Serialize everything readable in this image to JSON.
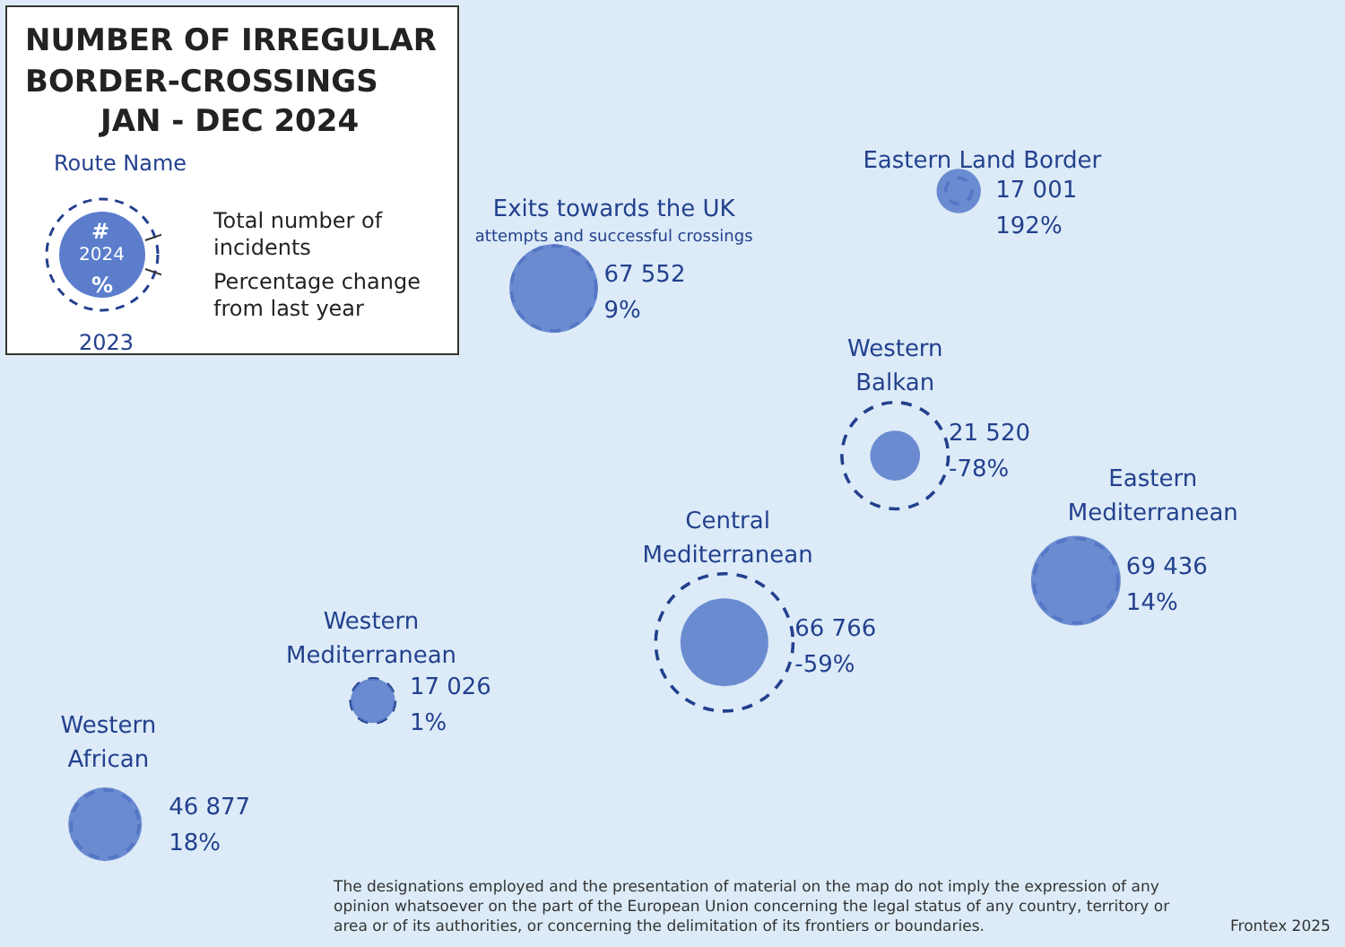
{
  "chart_data": {
    "type": "other",
    "title": "NUMBER OF IRREGULAR BORDER-CROSSINGS",
    "subtitle": "JAN - DEC 2024",
    "categories": [
      "Eastern Land Border",
      "Exits towards the UK",
      "Western Balkan",
      "Eastern Mediterranean",
      "Central Mediterranean",
      "Western Mediterranean",
      "Western African"
    ],
    "series": [
      {
        "color": "#5b7dcc",
        "values": [
          17001,
          67552,
          21520,
          69436,
          66766,
          17026,
          46877
        ],
        "value_labels": [
          "17 001",
          "67 552",
          "21 520",
          "69 436",
          "66 766",
          "17 026",
          "46 877"
        ]
      },
      {
        "color": "#23408e",
        "values": [
          192,
          9,
          -78,
          14,
          -59,
          1,
          18
        ],
        "value_labels": [
          "192%",
          "9%",
          "-78%",
          "14%",
          "-59%",
          "1%",
          "18%"
        ]
      }
    ],
    "annotations": [
      "Route Name",
      "#",
      "2024",
      "%",
      "2023",
      "attempts and successful crossings",
      "Total number of incidents",
      "Percentage change from last year",
      "The designations employed and the presentation of material on the map do not imply the expression of any opinion whatsoever on the part of the European Union concerning the legal status of any country, territory or area or of its authorities, or concerning the delimitation of its frontiers or boundaries.",
      "Frontex 2025"
    ]
  }
}
